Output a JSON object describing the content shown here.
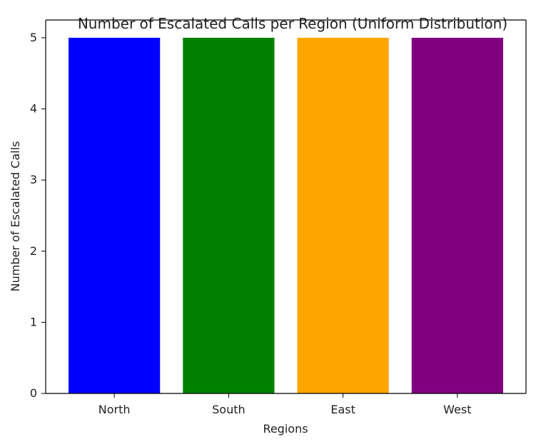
{
  "chart_data": {
    "type": "bar",
    "title": "Number of Escalated Calls per Region (Uniform Distribution)",
    "xlabel": "Regions",
    "ylabel": "Number of Escalated Calls",
    "categories": [
      "North",
      "South",
      "East",
      "West"
    ],
    "values": [
      5,
      5,
      5,
      5
    ],
    "colors": [
      "#0000ff",
      "#008000",
      "#ffa500",
      "#800080"
    ],
    "ylim": [
      0,
      5.25
    ],
    "yticks": [
      0,
      1,
      2,
      3,
      4,
      5
    ],
    "grid": false,
    "legend": "none"
  }
}
